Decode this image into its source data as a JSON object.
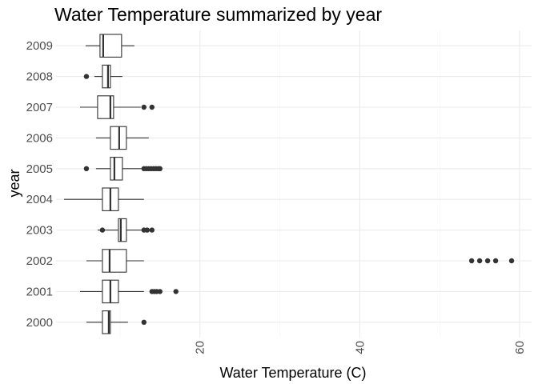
{
  "chart_data": {
    "type": "boxplot",
    "title": "Water Temperature summarized by year",
    "xlabel": "Water Temperature (C)",
    "ylabel": "year",
    "xlim": [
      2,
      61.5
    ],
    "x_ticks": [
      20,
      40,
      60
    ],
    "x_tick_labels": [
      "20",
      "40",
      "60"
    ],
    "grid": true,
    "categories": [
      "2000",
      "2001",
      "2002",
      "2003",
      "2004",
      "2005",
      "2006",
      "2007",
      "2008",
      "2009"
    ],
    "boxes": [
      {
        "year": "2000",
        "whisker_low": 5.8,
        "q1": 7.8,
        "median": 8.6,
        "q3": 8.8,
        "whisker_high": 11.0,
        "outliers": [
          13.0
        ]
      },
      {
        "year": "2001",
        "whisker_low": 5.0,
        "q1": 7.8,
        "median": 8.8,
        "q3": 9.8,
        "whisker_high": 13.0,
        "outliers": [
          14.0,
          14.3,
          14.6,
          15.0,
          17.0
        ]
      },
      {
        "year": "2002",
        "whisker_low": 5.8,
        "q1": 7.8,
        "median": 8.7,
        "q3": 10.8,
        "whisker_high": 13.0,
        "outliers": [
          54.0,
          55.0,
          56.0,
          57.0,
          59.0
        ]
      },
      {
        "year": "2003",
        "whisker_low": 7.2,
        "q1": 9.8,
        "median": 10.1,
        "q3": 10.8,
        "whisker_high": 12.8,
        "outliers": [
          7.8,
          13.0,
          13.4,
          14.0
        ]
      },
      {
        "year": "2004",
        "whisker_low": 3.0,
        "q1": 7.8,
        "median": 8.8,
        "q3": 9.8,
        "whisker_high": 13.0,
        "outliers": []
      },
      {
        "year": "2005",
        "whisker_low": 7.0,
        "q1": 8.8,
        "median": 9.3,
        "q3": 10.3,
        "whisker_high": 12.8,
        "outliers": [
          5.8,
          13.0,
          13.3,
          13.6,
          13.9,
          14.2,
          14.5,
          14.8,
          15.0
        ]
      },
      {
        "year": "2006",
        "whisker_low": 7.0,
        "q1": 8.8,
        "median": 9.9,
        "q3": 10.8,
        "whisker_high": 13.6,
        "outliers": []
      },
      {
        "year": "2007",
        "whisker_low": 5.0,
        "q1": 7.2,
        "median": 8.8,
        "q3": 9.2,
        "whisker_high": 12.6,
        "outliers": [
          13.0,
          14.0
        ]
      },
      {
        "year": "2008",
        "whisker_low": 6.8,
        "q1": 7.8,
        "median": 8.5,
        "q3": 8.8,
        "whisker_high": 10.3,
        "outliers": [
          5.8
        ]
      },
      {
        "year": "2009",
        "whisker_low": 5.7,
        "q1": 7.5,
        "median": 7.9,
        "q3": 10.2,
        "whisker_high": 11.8,
        "outliers": []
      }
    ]
  }
}
